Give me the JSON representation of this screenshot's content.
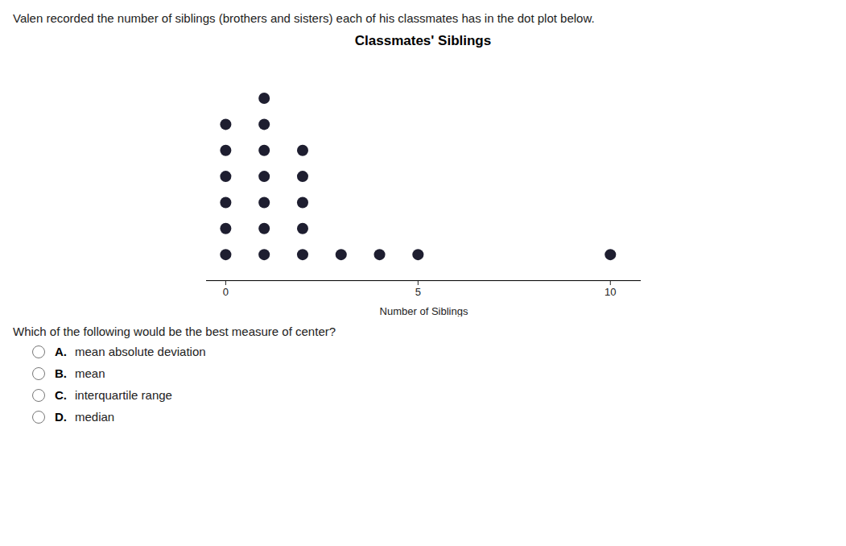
{
  "chart_data": {
    "type": "dot_plot",
    "title": "Classmates' Siblings",
    "xlabel": "Number of Siblings",
    "x": [
      0,
      1,
      2,
      3,
      4,
      5,
      10
    ],
    "values": [
      6,
      7,
      5,
      1,
      1,
      1,
      1
    ],
    "color": "#1e1e30",
    "xlim": [
      -0.5,
      10.8
    ],
    "xticks": [
      0,
      5,
      10
    ],
    "ylim": [
      0,
      8.5
    ],
    "tick_labels": "x",
    "grid": false,
    "annotations": [
      "Valen recorded the number of siblings (brothers and sisters) each of his classmates has in the dot plot below.",
      "Which of the following would be the best measure of center?",
      "A.",
      "mean absolute deviation",
      "B.",
      "mean",
      "C.",
      "interquartile range",
      "D.",
      "median"
    ]
  }
}
